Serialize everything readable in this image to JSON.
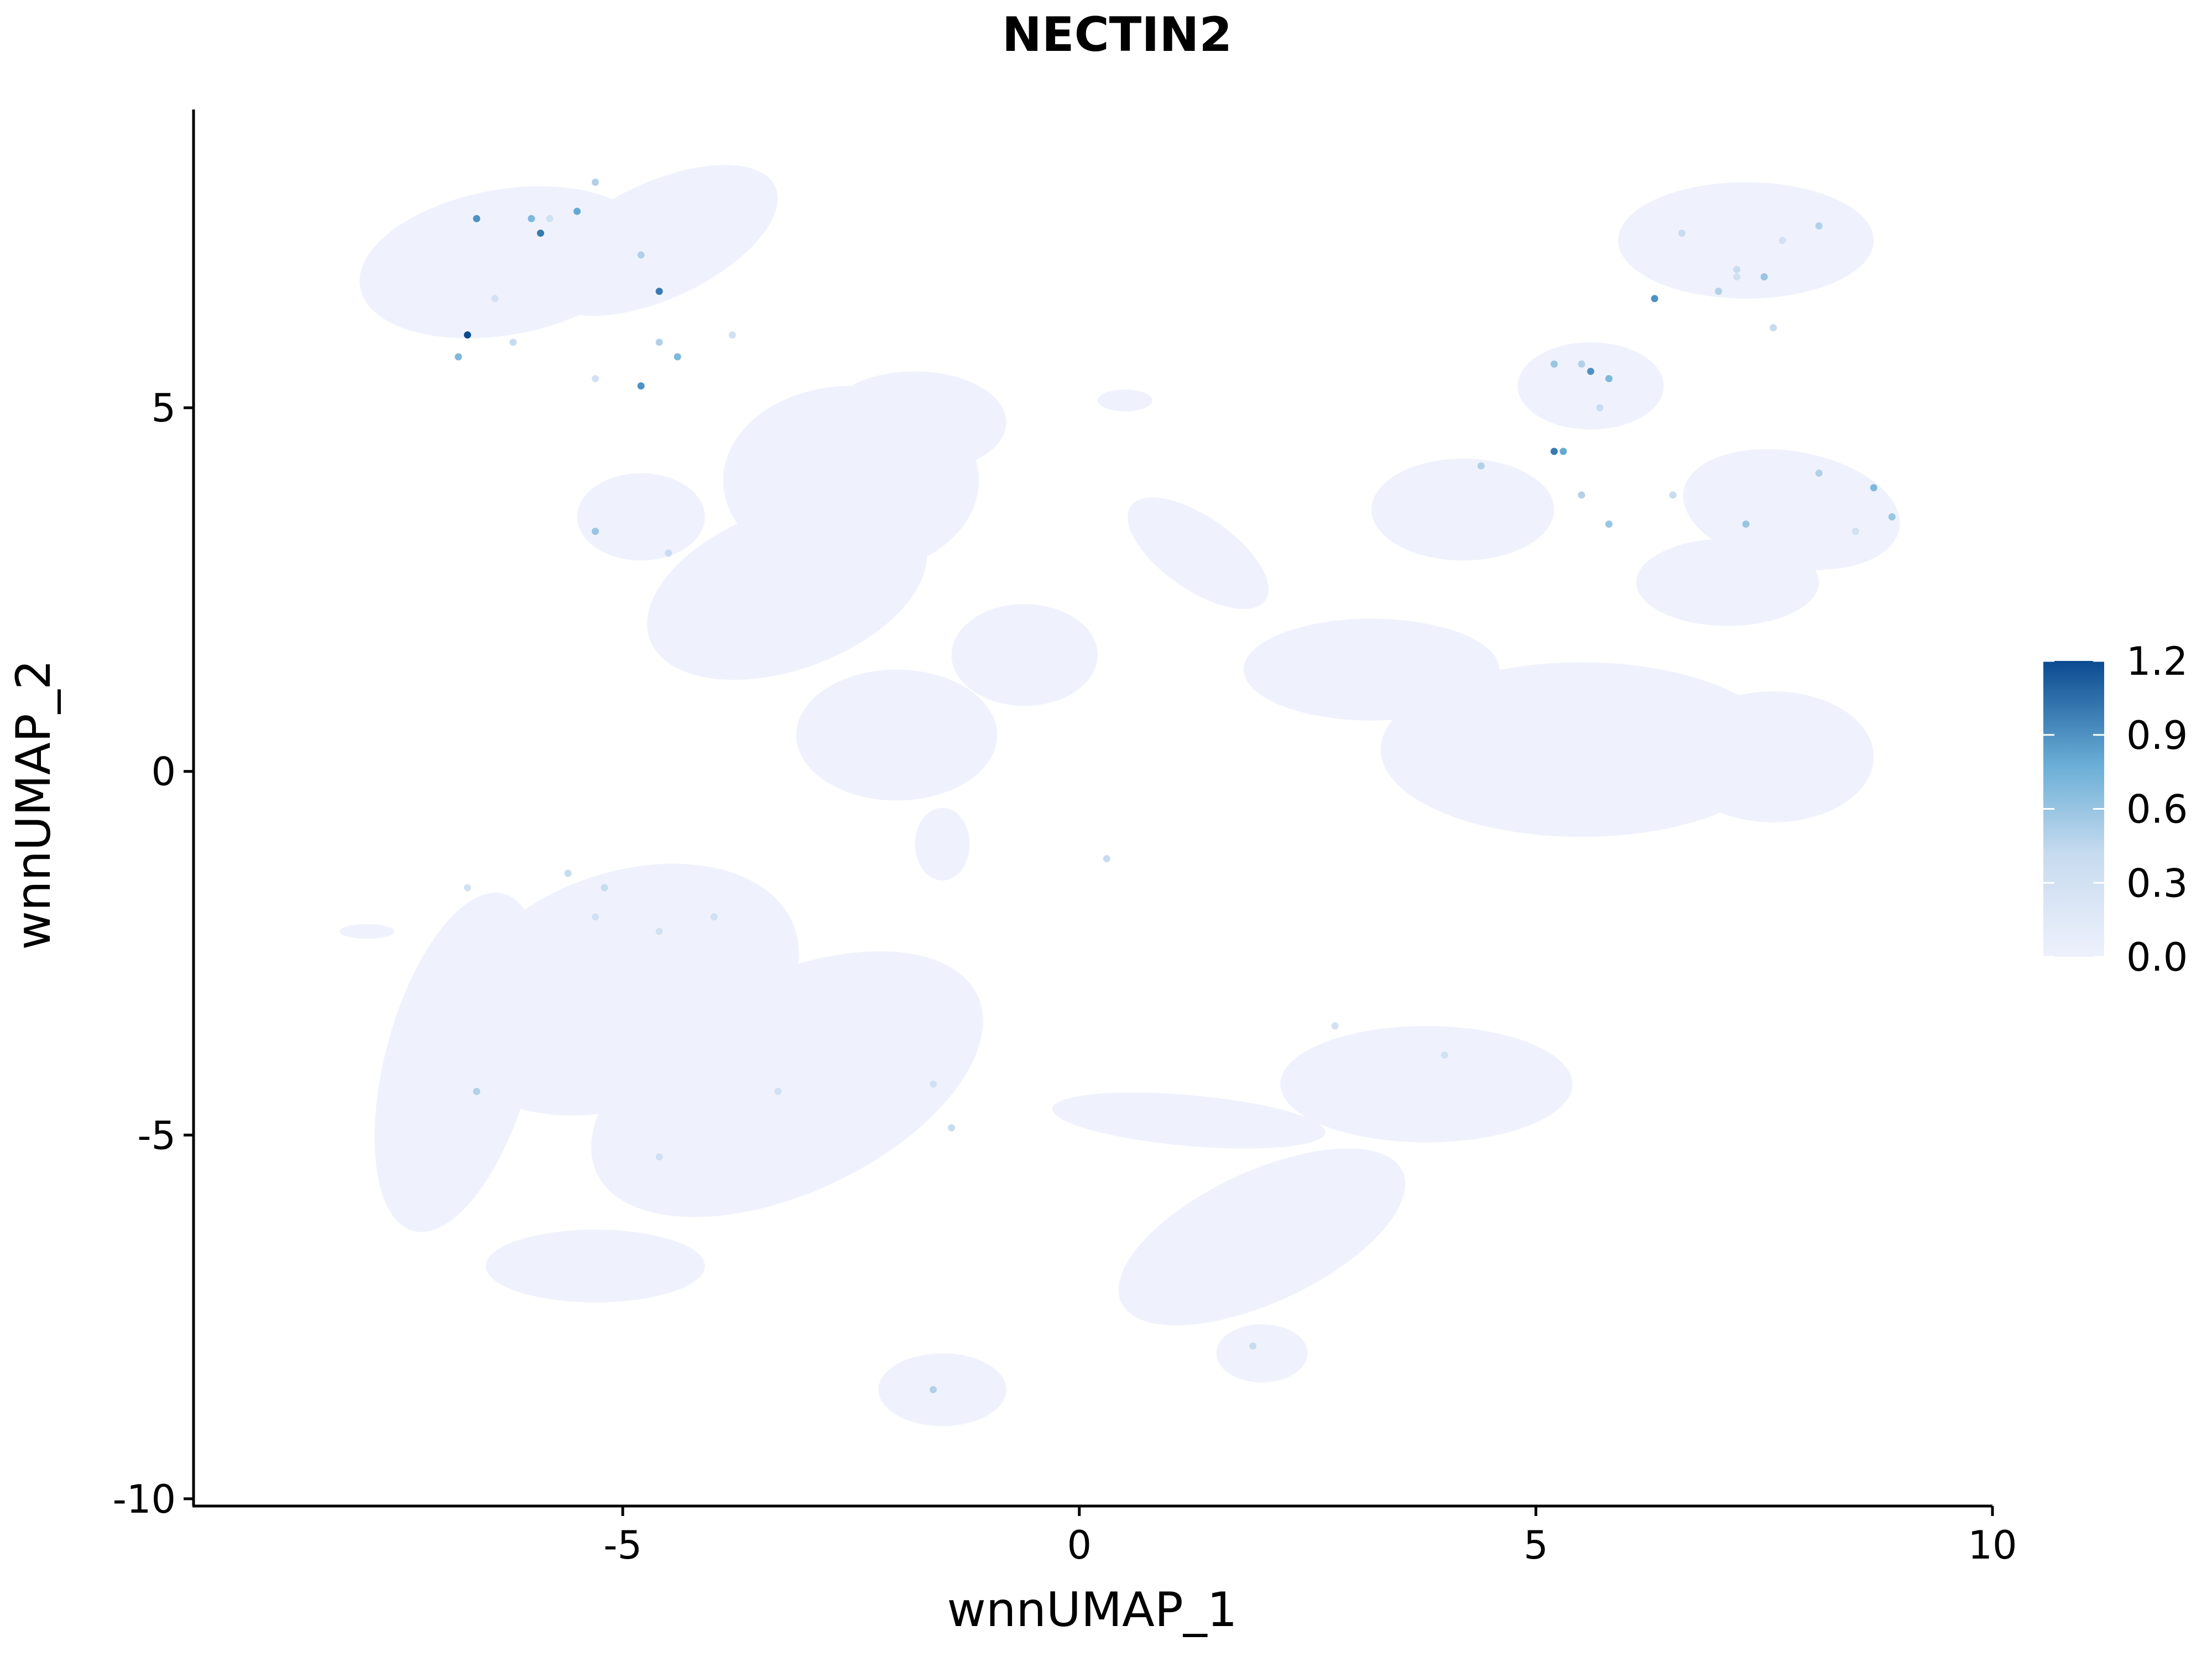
{
  "chart_data": {
    "type": "scatter",
    "title": "NECTIN2",
    "xlabel": "wnnUMAP_1",
    "ylabel": "wnnUMAP_2",
    "xlim": [
      -9.7,
      10
    ],
    "ylim": [
      -10.1,
      9.1
    ],
    "x_ticks": [
      -5,
      0,
      5,
      10
    ],
    "x_tick_labels": [
      "-5",
      "0",
      "5",
      "10"
    ],
    "y_ticks": [
      -10,
      -5,
      0,
      5
    ],
    "y_tick_labels": [
      "-10",
      "-5",
      "0",
      "5"
    ],
    "grid": false,
    "legend_position": "right",
    "colorbar": {
      "min": 0.0,
      "max": 1.2,
      "ticks": [
        0.0,
        0.3,
        0.6,
        0.9,
        1.2
      ],
      "tick_labels": [
        "0.0",
        "0.3",
        "0.6",
        "0.9",
        "1.2"
      ],
      "color_low": "#eef1fc",
      "color_high": "#0b4a90"
    },
    "background_point_color": "#eef1fc",
    "background_clusters": [
      {
        "cx": -6.3,
        "cy": 7.0,
        "rx": 1.6,
        "ry": 1.0,
        "angle": -10
      },
      {
        "cx": -4.6,
        "cy": 7.3,
        "rx": 1.4,
        "ry": 0.8,
        "angle": -25
      },
      {
        "cx": -2.5,
        "cy": 4.0,
        "rx": 1.4,
        "ry": 1.3,
        "angle": 0
      },
      {
        "cx": -3.2,
        "cy": 2.5,
        "rx": 1.6,
        "ry": 1.1,
        "angle": -20
      },
      {
        "cx": -1.8,
        "cy": 4.8,
        "rx": 1.0,
        "ry": 0.7,
        "angle": 0
      },
      {
        "cx": -4.8,
        "cy": 3.5,
        "rx": 0.7,
        "ry": 0.6,
        "angle": 0
      },
      {
        "cx": -2.0,
        "cy": 0.5,
        "rx": 1.1,
        "ry": 0.9,
        "angle": 0
      },
      {
        "cx": -0.6,
        "cy": 1.6,
        "rx": 0.8,
        "ry": 0.7,
        "angle": 0
      },
      {
        "cx": -1.5,
        "cy": -1.0,
        "rx": 0.3,
        "ry": 0.5,
        "angle": 0
      },
      {
        "cx": 0.5,
        "cy": 5.1,
        "rx": 0.3,
        "ry": 0.15,
        "angle": 0
      },
      {
        "cx": 1.3,
        "cy": 3.0,
        "rx": 0.9,
        "ry": 0.5,
        "angle": 35
      },
      {
        "cx": 3.2,
        "cy": 1.4,
        "rx": 1.4,
        "ry": 0.7,
        "angle": 0
      },
      {
        "cx": 4.2,
        "cy": 3.6,
        "rx": 1.0,
        "ry": 0.7,
        "angle": 0
      },
      {
        "cx": 5.6,
        "cy": 5.3,
        "rx": 0.8,
        "ry": 0.6,
        "angle": 0
      },
      {
        "cx": 7.3,
        "cy": 7.3,
        "rx": 1.4,
        "ry": 0.8,
        "angle": 0
      },
      {
        "cx": 7.8,
        "cy": 3.6,
        "rx": 1.2,
        "ry": 0.8,
        "angle": 10
      },
      {
        "cx": 7.1,
        "cy": 2.6,
        "rx": 1.0,
        "ry": 0.6,
        "angle": 0
      },
      {
        "cx": 5.5,
        "cy": 0.3,
        "rx": 2.2,
        "ry": 1.2,
        "angle": 0
      },
      {
        "cx": 7.6,
        "cy": 0.2,
        "rx": 1.1,
        "ry": 0.9,
        "angle": 0
      },
      {
        "cx": -5.0,
        "cy": -3.0,
        "rx": 2.0,
        "ry": 1.6,
        "angle": -20
      },
      {
        "cx": -3.2,
        "cy": -4.3,
        "rx": 2.3,
        "ry": 1.5,
        "angle": -25
      },
      {
        "cx": -6.8,
        "cy": -4.0,
        "rx": 0.8,
        "ry": 2.4,
        "angle": 15
      },
      {
        "cx": -5.3,
        "cy": -6.8,
        "rx": 1.2,
        "ry": 0.5,
        "angle": 0
      },
      {
        "cx": -1.5,
        "cy": -8.5,
        "rx": 0.7,
        "ry": 0.5,
        "angle": 0
      },
      {
        "cx": 2.0,
        "cy": -6.4,
        "rx": 1.7,
        "ry": 0.9,
        "angle": -25
      },
      {
        "cx": 3.8,
        "cy": -4.3,
        "rx": 1.6,
        "ry": 0.8,
        "angle": 0
      },
      {
        "cx": 2.0,
        "cy": -8.0,
        "rx": 0.5,
        "ry": 0.4,
        "angle": 0
      },
      {
        "cx": 1.2,
        "cy": -4.8,
        "rx": 1.5,
        "ry": 0.35,
        "angle": 5
      },
      {
        "cx": -7.8,
        "cy": -2.2,
        "rx": 0.3,
        "ry": 0.1,
        "angle": 0
      }
    ],
    "points": [
      {
        "x": -6.6,
        "y": 7.6,
        "v": 0.9
      },
      {
        "x": -6.0,
        "y": 7.6,
        "v": 0.7
      },
      {
        "x": -5.9,
        "y": 7.4,
        "v": 1.0
      },
      {
        "x": -5.5,
        "y": 7.7,
        "v": 0.8
      },
      {
        "x": -5.3,
        "y": 8.1,
        "v": 0.5
      },
      {
        "x": -5.8,
        "y": 7.6,
        "v": 0.3
      },
      {
        "x": -4.8,
        "y": 7.1,
        "v": 0.5
      },
      {
        "x": -4.6,
        "y": 6.6,
        "v": 1.0
      },
      {
        "x": -6.7,
        "y": 6.0,
        "v": 1.2
      },
      {
        "x": -6.8,
        "y": 5.7,
        "v": 0.7
      },
      {
        "x": -6.2,
        "y": 5.9,
        "v": 0.4
      },
      {
        "x": -4.4,
        "y": 5.7,
        "v": 0.7
      },
      {
        "x": -4.6,
        "y": 5.9,
        "v": 0.5
      },
      {
        "x": -4.8,
        "y": 5.3,
        "v": 0.9
      },
      {
        "x": -5.3,
        "y": 5.4,
        "v": 0.3
      },
      {
        "x": -6.4,
        "y": 6.5,
        "v": 0.3
      },
      {
        "x": -3.8,
        "y": 6.0,
        "v": 0.3
      },
      {
        "x": -5.3,
        "y": 3.3,
        "v": 0.6
      },
      {
        "x": -4.5,
        "y": 3.0,
        "v": 0.4
      },
      {
        "x": -5.6,
        "y": -1.4,
        "v": 0.4
      },
      {
        "x": -5.2,
        "y": -1.6,
        "v": 0.4
      },
      {
        "x": -5.3,
        "y": -2.0,
        "v": 0.3
      },
      {
        "x": -6.7,
        "y": -1.6,
        "v": 0.3
      },
      {
        "x": -4.6,
        "y": -2.2,
        "v": 0.3
      },
      {
        "x": -4.0,
        "y": -2.0,
        "v": 0.3
      },
      {
        "x": -6.6,
        "y": -4.4,
        "v": 0.5
      },
      {
        "x": -4.6,
        "y": -5.3,
        "v": 0.3
      },
      {
        "x": -1.4,
        "y": -4.9,
        "v": 0.4
      },
      {
        "x": -1.6,
        "y": -4.3,
        "v": 0.3
      },
      {
        "x": -3.3,
        "y": -4.4,
        "v": 0.3
      },
      {
        "x": -1.6,
        "y": -8.5,
        "v": 0.5
      },
      {
        "x": 0.3,
        "y": -1.2,
        "v": 0.4
      },
      {
        "x": 4.4,
        "y": 4.2,
        "v": 0.5
      },
      {
        "x": 5.2,
        "y": 4.4,
        "v": 1.0
      },
      {
        "x": 5.3,
        "y": 4.4,
        "v": 0.8
      },
      {
        "x": 5.5,
        "y": 3.8,
        "v": 0.5
      },
      {
        "x": 5.8,
        "y": 3.4,
        "v": 0.6
      },
      {
        "x": 5.2,
        "y": 5.6,
        "v": 0.6
      },
      {
        "x": 5.6,
        "y": 5.5,
        "v": 0.9
      },
      {
        "x": 5.8,
        "y": 5.4,
        "v": 0.7
      },
      {
        "x": 5.7,
        "y": 5.0,
        "v": 0.4
      },
      {
        "x": 5.5,
        "y": 5.6,
        "v": 0.5
      },
      {
        "x": 6.3,
        "y": 6.5,
        "v": 0.9
      },
      {
        "x": 6.6,
        "y": 7.4,
        "v": 0.4
      },
      {
        "x": 7.0,
        "y": 6.6,
        "v": 0.5
      },
      {
        "x": 7.2,
        "y": 6.9,
        "v": 0.4
      },
      {
        "x": 7.2,
        "y": 6.8,
        "v": 0.3
      },
      {
        "x": 7.5,
        "y": 6.8,
        "v": 0.6
      },
      {
        "x": 7.6,
        "y": 6.1,
        "v": 0.4
      },
      {
        "x": 7.7,
        "y": 7.3,
        "v": 0.3
      },
      {
        "x": 8.1,
        "y": 7.5,
        "v": 0.5
      },
      {
        "x": 6.5,
        "y": 3.8,
        "v": 0.4
      },
      {
        "x": 7.3,
        "y": 3.4,
        "v": 0.6
      },
      {
        "x": 8.1,
        "y": 4.1,
        "v": 0.5
      },
      {
        "x": 8.7,
        "y": 3.9,
        "v": 0.7
      },
      {
        "x": 8.9,
        "y": 3.5,
        "v": 0.6
      },
      {
        "x": 8.5,
        "y": 3.3,
        "v": 0.3
      },
      {
        "x": 4.0,
        "y": -3.9,
        "v": 0.3
      },
      {
        "x": 2.8,
        "y": -3.5,
        "v": 0.3
      },
      {
        "x": 1.9,
        "y": -7.9,
        "v": 0.4
      }
    ]
  }
}
